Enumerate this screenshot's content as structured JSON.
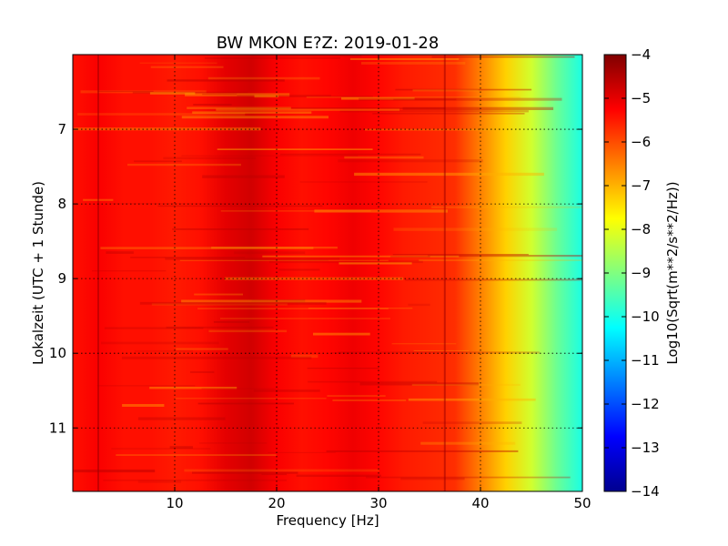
{
  "chart_data": {
    "type": "heatmap",
    "title": "BW MKON E?Z: 2019-01-28",
    "xlabel": "Frequency [Hz]",
    "ylabel": "Lokalzeit (UTC + 1 Stunde)",
    "xlim": [
      0,
      50
    ],
    "ylim": [
      6.0,
      11.85
    ],
    "y_inverted": true,
    "x_ticks": [
      10,
      20,
      30,
      40,
      50
    ],
    "y_ticks": [
      7,
      8,
      9,
      10,
      11
    ],
    "grid": true,
    "colormap": "jet",
    "colorbar": {
      "label": "Log10(Sqrt(m**2/s**2/Hz))",
      "range": [
        -14,
        -4
      ],
      "ticks": [
        -4,
        -5,
        -6,
        -7,
        -8,
        -9,
        -10,
        -11,
        -12,
        -13,
        -14
      ]
    },
    "frequency_hz": [
      0,
      2.5,
      5,
      7.5,
      10,
      12.5,
      15,
      17.5,
      20,
      22.5,
      25,
      27.5,
      30,
      32.5,
      35,
      37.5,
      40,
      42.5,
      45,
      47.5,
      50
    ],
    "mean_level": [
      -5.4,
      -5.2,
      -5.4,
      -5.4,
      -5.5,
      -5.4,
      -5.0,
      -4.8,
      -5.2,
      -5.4,
      -5.3,
      -5.1,
      -5.3,
      -5.5,
      -5.6,
      -5.7,
      -6.5,
      -7.3,
      -8.2,
      -9.2,
      -10.0
    ],
    "spectral_lines_hz": [
      2.5,
      36.5
    ]
  }
}
